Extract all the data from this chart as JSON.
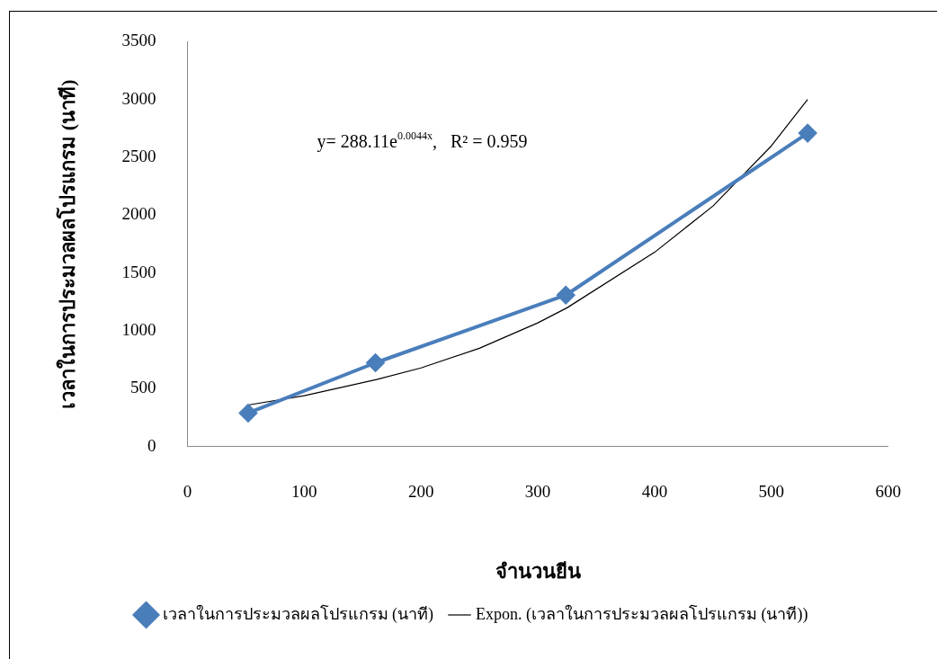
{
  "chart_data": {
    "type": "line",
    "xlabel": "จำนวนยีน",
    "ylabel": "เวลาในการประมวลผลโปรแกรม (นาที)",
    "series": [
      {
        "name": "เวลาในการประมวลผลโปรแกรม (นาที)",
        "color": "#4a7ebb",
        "x": [
          52,
          161,
          324,
          531
        ],
        "values": [
          290,
          725,
          1310,
          2710
        ]
      },
      {
        "name": "Expon. (เวลาในการประมวลผลโปรแกรม (นาที))",
        "color": "#000000",
        "marker": "none",
        "x": [
          52,
          100,
          162,
          200,
          250,
          300,
          325,
          400,
          450,
          500,
          531
        ],
        "values": [
          360,
          440,
          580,
          680,
          850,
          1070,
          1200,
          1680,
          2080,
          2600,
          3000
        ]
      }
    ],
    "annotations": [
      "y= 288.11e$^{0.0044x}$,   R² = 0.959"
    ],
    "xlim": [
      0,
      600
    ],
    "xticks": [
      0,
      100,
      200,
      300,
      400,
      500,
      600
    ],
    "ylim": [
      0,
      3500
    ],
    "yticks": [
      0,
      500,
      1000,
      1500,
      2000,
      2500,
      3000,
      3500
    ],
    "grid": false,
    "legend": "bottom",
    "marker": "diamond"
  }
}
